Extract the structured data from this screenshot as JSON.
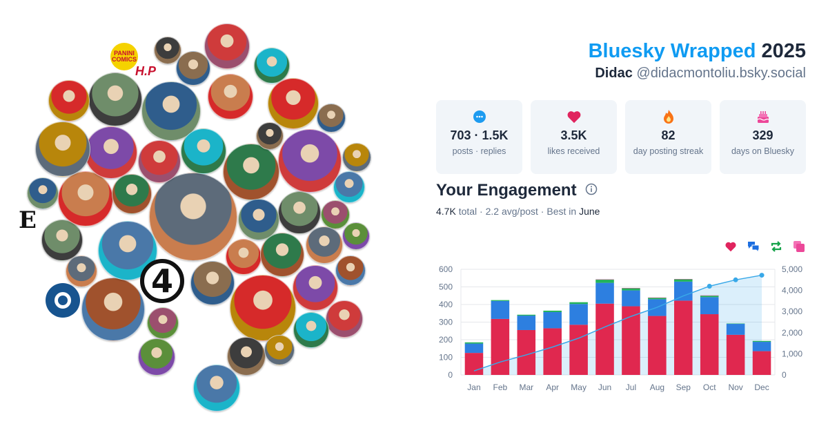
{
  "header": {
    "brand": "Bluesky Wrapped",
    "year": "2025",
    "display_name": "Didac",
    "handle": "@didacmontoliu.bsky.social"
  },
  "stats": [
    {
      "icon": "chat-bubble-icon",
      "value": "703 · 1.5K",
      "label": "posts · replies",
      "color": "#1d9bf0"
    },
    {
      "icon": "heart-icon",
      "value": "3.5K",
      "label": "likes received",
      "color": "#e0245e"
    },
    {
      "icon": "flame-icon",
      "value": "82",
      "label": "day posting streak",
      "color": "#f97316"
    },
    {
      "icon": "cake-icon",
      "value": "329",
      "label": "days on Bluesky",
      "color": "#ec4899"
    }
  ],
  "engagement": {
    "title": "Your Engagement",
    "total": "4.7K",
    "total_label": "total",
    "avg": "2.2 avg/post",
    "best_prefix": "Best in",
    "best_month": "June",
    "legend": [
      {
        "icon": "heart-icon",
        "color": "#e0245e"
      },
      {
        "icon": "replies-icon",
        "color": "#1d6fe0"
      },
      {
        "icon": "repost-icon",
        "color": "#16a34a"
      },
      {
        "icon": "quote-icon",
        "color": "#ec4899"
      }
    ]
  },
  "colors": {
    "likes": "#e0284f",
    "replies": "#2d7fe0",
    "reposts": "#22b35a",
    "cumulative": "#38a8e8",
    "brand": "#0f9bf2"
  },
  "chart_data": {
    "type": "bar",
    "stacked": true,
    "categories": [
      "Jan",
      "Feb",
      "Mar",
      "Apr",
      "May",
      "Jun",
      "Jul",
      "Aug",
      "Sep",
      "Oct",
      "Nov",
      "Dec"
    ],
    "series": [
      {
        "values": [
          125,
          318,
          255,
          265,
          285,
          405,
          390,
          335,
          422,
          345,
          228,
          135
        ]
      },
      {
        "values": [
          53,
          102,
          82,
          92,
          118,
          118,
          90,
          95,
          108,
          97,
          62,
          53
        ]
      },
      {
        "values": [
          7,
          5,
          5,
          8,
          10,
          18,
          12,
          8,
          13,
          8,
          2,
          5
        ]
      },
      {
        "values": [
          0,
          0,
          0,
          0,
          0,
          2,
          2,
          2,
          2,
          2,
          0,
          0
        ]
      }
    ],
    "cumulative": {
      "axis": "right",
      "values": [
        190,
        610,
        950,
        1320,
        1740,
        2270,
        2770,
        3200,
        3740,
        4200,
        4500,
        4720
      ]
    },
    "y_left": {
      "ticks": [
        0,
        100,
        200,
        300,
        400,
        500,
        600
      ],
      "min": 0,
      "max": 600
    },
    "y_right": {
      "ticks": [
        "0",
        "1,000",
        "2,000",
        "3,000",
        "4,000",
        "5,000"
      ],
      "min": 0,
      "max": 5000
    },
    "grid": true
  },
  "avatars": [
    {
      "name": "avatar-small",
      "color": "#5d6b7a"
    },
    {
      "name": "avatar-doctor-doom",
      "color": "#6f8d6a"
    },
    {
      "name": "avatar-selfie",
      "color": "#2f5d8c"
    },
    {
      "name": "avatar-cartoon-beard",
      "color": "#c97d4e"
    },
    {
      "name": "avatar-waterfall",
      "color": "#2e7a4b"
    },
    {
      "name": "avatar-mask-hero",
      "color": "#7d4aa8"
    },
    {
      "name": "avatar-cartoon-detective",
      "color": "#6b8f62"
    },
    {
      "name": "avatar-superman-santa",
      "color": "#cf3b3b"
    },
    {
      "name": "avatar-not-fast",
      "color": "#1bb4c9"
    },
    {
      "name": "avatar-inigo",
      "color": "#d62a2a"
    }
  ]
}
